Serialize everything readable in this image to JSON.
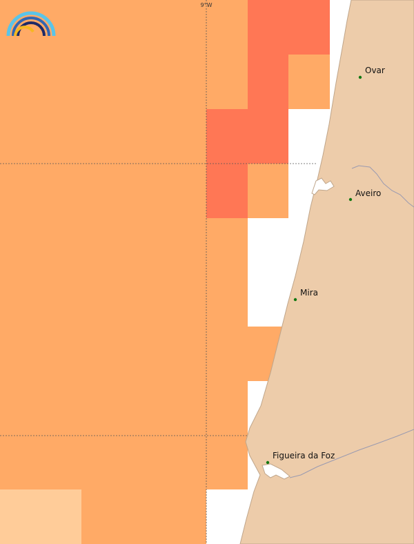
{
  "map": {
    "colors": {
      "sea_base": "#ffffff",
      "land": "#edccaa",
      "coast_line": "#bfa58a",
      "river": "#9a9ab0",
      "level_medium": "#ffaa66",
      "level_high": "#ff7755",
      "level_low": "#ffcc99",
      "graticule": "#555555",
      "city_dot": "#117711"
    },
    "longitude_label": "9°W",
    "cities": [
      {
        "name": "Ovar"
      },
      {
        "name": "Aveiro"
      },
      {
        "name": "Mira"
      },
      {
        "name": "Figueira da Foz"
      }
    ],
    "logo": {
      "name": "provider-logo"
    }
  }
}
